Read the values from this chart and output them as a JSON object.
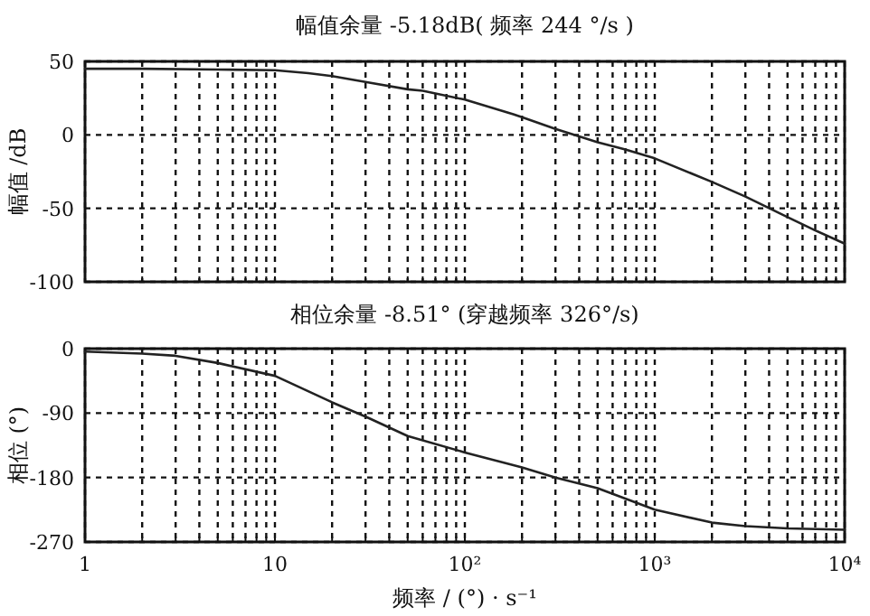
{
  "chart_data": [
    {
      "type": "line",
      "title": "幅值余量 -5.18dB( 频率 244 °/s )",
      "ylabel": "幅值 /dB",
      "log": "x",
      "grid": true,
      "tick_labels": "y",
      "xlim": [
        1,
        10000
      ],
      "ylim": [
        -100,
        50
      ],
      "yticks": [
        -100,
        -50,
        0,
        50
      ],
      "xticks": [
        1,
        2,
        3,
        4,
        5,
        6,
        7,
        8,
        9,
        10,
        20,
        30,
        40,
        50,
        60,
        70,
        80,
        90,
        100,
        200,
        300,
        400,
        500,
        600,
        700,
        800,
        900,
        1000,
        2000,
        3000,
        4000,
        5000,
        6000,
        7000,
        8000,
        9000,
        10000
      ],
      "series": [
        {
          "color": "#222222",
          "x": [
            1,
            2,
            5,
            10,
            15,
            20,
            30,
            50,
            60,
            100,
            180,
            200,
            300,
            400,
            500,
            700,
            1000,
            2000,
            3000,
            5000,
            7000,
            10000
          ],
          "values": [
            45,
            45,
            44.5,
            44,
            42,
            40,
            36,
            31,
            30,
            24,
            14,
            12,
            4,
            -1,
            -5,
            -10,
            -16,
            -32,
            -42,
            -56,
            -65,
            -74
          ]
        }
      ]
    },
    {
      "type": "line",
      "title": "相位余量 -8.51° (穿越频率 326°/s)",
      "ylabel": "相位 (°)",
      "xlabel": "频率 / (°) · s⁻¹",
      "log": "x",
      "grid": true,
      "xlim": [
        1,
        10000
      ],
      "ylim": [
        -270,
        0
      ],
      "yticks": [
        -270,
        -180,
        -90,
        0
      ],
      "xticks": [
        1,
        {
          "value": 2,
          "label": null
        },
        {
          "value": 3,
          "label": null
        },
        {
          "value": 4,
          "label": null
        },
        {
          "value": 5,
          "label": null
        },
        {
          "value": 6,
          "label": null
        },
        {
          "value": 7,
          "label": null
        },
        {
          "value": 8,
          "label": null
        },
        {
          "value": 9,
          "label": null
        },
        10,
        {
          "value": 20,
          "label": null
        },
        {
          "value": 30,
          "label": null
        },
        {
          "value": 40,
          "label": null
        },
        {
          "value": 50,
          "label": null
        },
        {
          "value": 60,
          "label": null
        },
        {
          "value": 70,
          "label": null
        },
        {
          "value": 80,
          "label": null
        },
        {
          "value": 90,
          "label": null
        },
        {
          "value": 100,
          "label": "10²"
        },
        {
          "value": 200,
          "label": null
        },
        {
          "value": 300,
          "label": null
        },
        {
          "value": 400,
          "label": null
        },
        {
          "value": 500,
          "label": null
        },
        {
          "value": 600,
          "label": null
        },
        {
          "value": 700,
          "label": null
        },
        {
          "value": 800,
          "label": null
        },
        {
          "value": 900,
          "label": null
        },
        {
          "value": 1000,
          "label": "10³"
        },
        {
          "value": 2000,
          "label": null
        },
        {
          "value": 3000,
          "label": null
        },
        {
          "value": 4000,
          "label": null
        },
        {
          "value": 5000,
          "label": null
        },
        {
          "value": 6000,
          "label": null
        },
        {
          "value": 7000,
          "label": null
        },
        {
          "value": 8000,
          "label": null
        },
        {
          "value": 9000,
          "label": null
        },
        {
          "value": 10000,
          "label": "10⁴"
        }
      ],
      "series": [
        {
          "color": "#222222",
          "x": [
            1,
            2,
            3,
            5,
            10,
            20,
            30,
            50,
            100,
            200,
            300,
            500,
            1000,
            2000,
            3000,
            5000,
            10000
          ],
          "values": [
            -4,
            -7,
            -10,
            -20,
            -38,
            -75,
            -95,
            -122,
            -145,
            -166,
            -180,
            -195,
            -225,
            -243,
            -248,
            -251,
            -253
          ]
        }
      ]
    }
  ]
}
